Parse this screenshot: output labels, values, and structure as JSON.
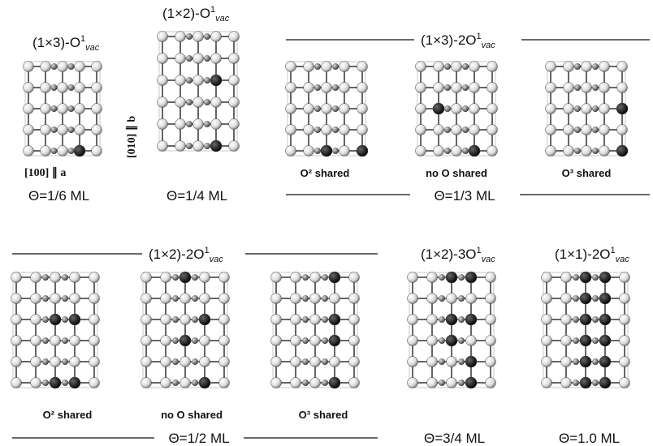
{
  "panels": [
    {
      "title": {
        "text": "(1×3)-O",
        "sup": "1",
        "sub": "vac"
      },
      "axis_a": "[100] ∥ a",
      "axis_b": "[010] ∥ b",
      "coverage": "Θ=1/6 ML"
    },
    {
      "title": {
        "text": "(1×2)-O",
        "sup": "1",
        "sub": "vac"
      },
      "coverage": "Θ=1/4 ML"
    },
    {
      "title": {
        "text": "(1×3)-2O",
        "sup": "1",
        "sub": "vac"
      },
      "structures": [
        "O² shared",
        "no O shared",
        "O³ shared"
      ],
      "coverage": "Θ=1/3 ML"
    },
    {
      "title": {
        "text": "(1×2)-2O",
        "sup": "1",
        "sub": "vac"
      },
      "structures": [
        "O² shared",
        "no O shared",
        "O³ shared"
      ],
      "coverage": "Θ=1/2 ML"
    },
    {
      "title": {
        "text": "(1×2)-3O",
        "sup": "1",
        "sub": "vac"
      },
      "coverage": "Θ=3/4 ML"
    },
    {
      "title": {
        "text": "(1×1)-2O",
        "sup": "1",
        "sub": "vac"
      },
      "coverage": "Θ=1.0 ML"
    }
  ]
}
